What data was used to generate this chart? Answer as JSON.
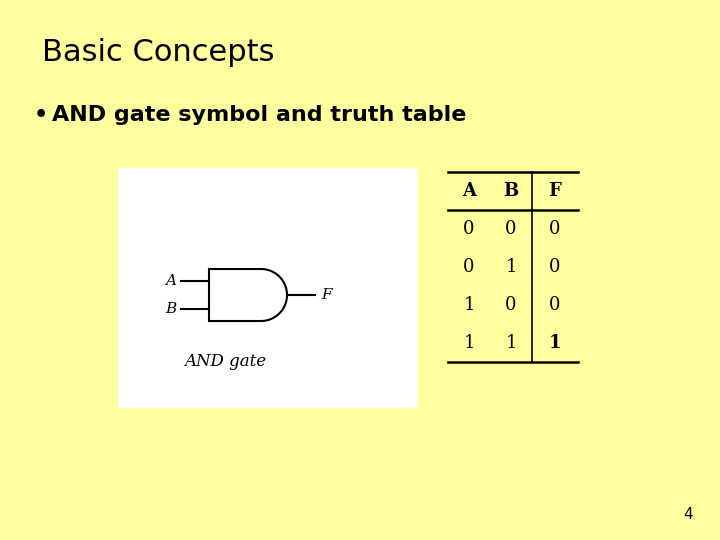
{
  "title": "Basic Concepts",
  "bullet": "AND gate symbol and truth table",
  "slide_bg": "#FFFFA0",
  "box_bg": "#FFFFFF",
  "truth_table": {
    "headers": [
      "A",
      "B",
      "F"
    ],
    "rows": [
      [
        0,
        0,
        0
      ],
      [
        0,
        1,
        0
      ],
      [
        1,
        0,
        0
      ],
      [
        1,
        1,
        1
      ]
    ]
  },
  "page_number": "4",
  "and_gate_label": "AND gate",
  "input_a": "A",
  "input_b": "B",
  "output_f": "F",
  "title_fontsize": 22,
  "bullet_fontsize": 16,
  "table_fontsize": 13,
  "gate_label_fontsize": 12
}
